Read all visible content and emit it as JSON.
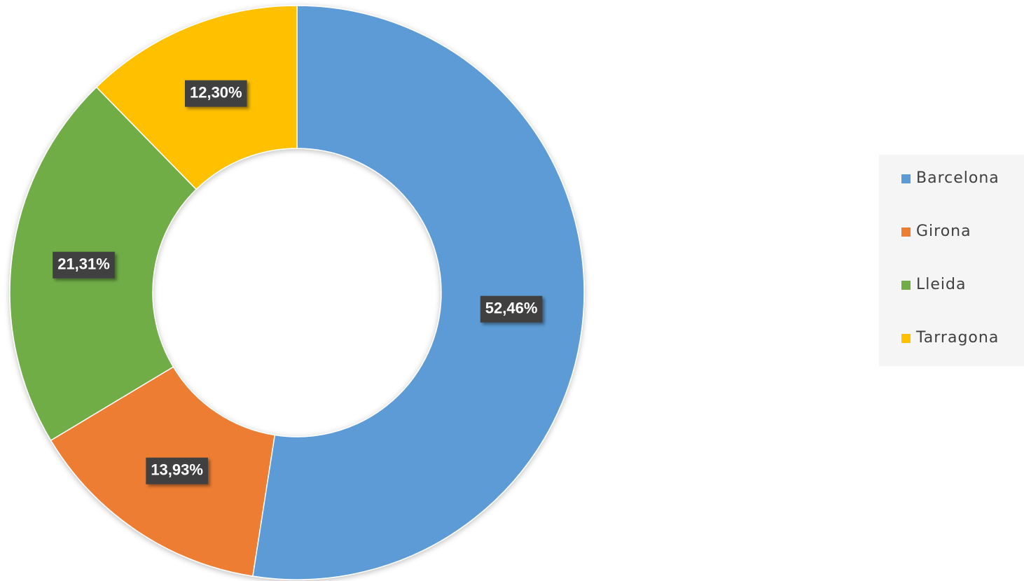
{
  "chart_data": {
    "type": "donut",
    "categories": [
      "Barcelona",
      "Girona",
      "Lleida",
      "Tarragona"
    ],
    "values": [
      52.46,
      13.93,
      21.31,
      12.3
    ],
    "value_labels": [
      "52,46%",
      "13,93%",
      "21,31%",
      "12,30%"
    ],
    "colors": [
      "#5b9bd5",
      "#ed7d31",
      "#70ad47",
      "#ffc000"
    ],
    "legend": "right"
  }
}
